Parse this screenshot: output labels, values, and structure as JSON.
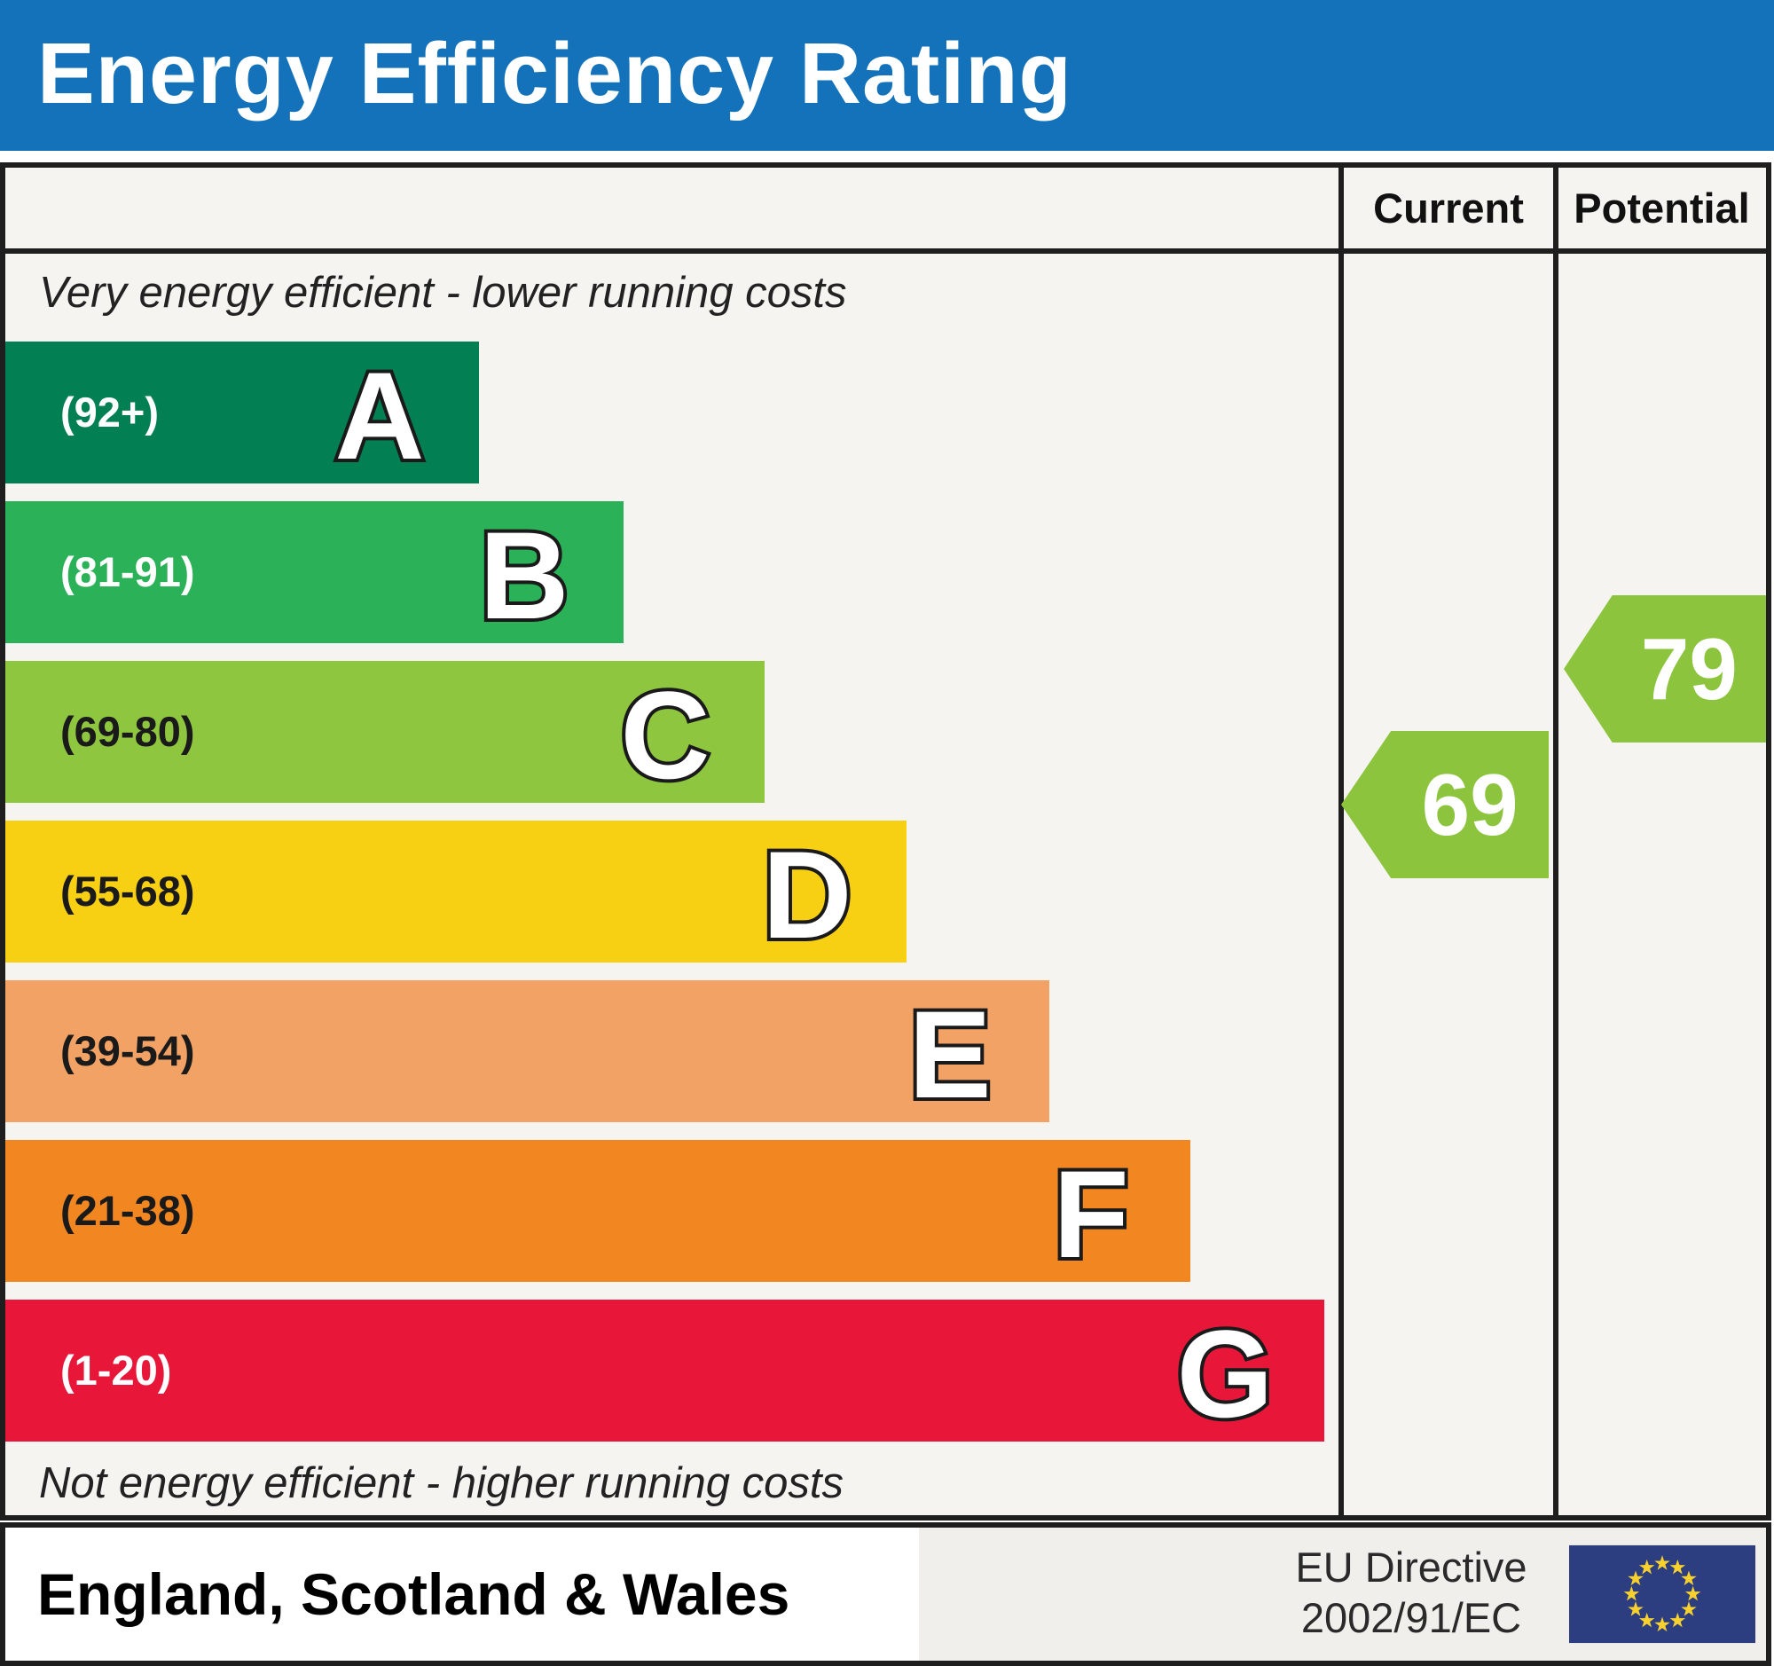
{
  "header": {
    "title": "Energy Efficiency Rating"
  },
  "table": {
    "current_label": "Current",
    "potential_label": "Potential",
    "top_caption": "Very energy efficient - lower running costs",
    "bottom_caption": "Not energy efficient - higher running costs"
  },
  "bands": [
    {
      "letter": "A",
      "range": "(92+)",
      "color": "#028054",
      "text_color": "#ffffff",
      "width_pct": 26.9
    },
    {
      "letter": "B",
      "range": "(81-91)",
      "color": "#2bb258",
      "text_color": "#ffffff",
      "width_pct": 35.1
    },
    {
      "letter": "C",
      "range": "(69-80)",
      "color": "#8ec63f",
      "text_color": "#1a1a1a",
      "width_pct": 43.1
    },
    {
      "letter": "D",
      "range": "(55-68)",
      "color": "#f7cf13",
      "text_color": "#1a1a1a",
      "width_pct": 51.2
    },
    {
      "letter": "E",
      "range": "(39-54)",
      "color": "#f1a264",
      "text_color": "#1a1a1a",
      "width_pct": 59.3
    },
    {
      "letter": "F",
      "range": "(21-38)",
      "color": "#f28620",
      "text_color": "#1a1a1a",
      "width_pct": 67.3
    },
    {
      "letter": "G",
      "range": "(1-20)",
      "color": "#e8173a",
      "text_color": "#ffffff",
      "width_pct": 74.9
    }
  ],
  "ratings": {
    "current": {
      "value": "69",
      "color": "#8cc43d"
    },
    "potential": {
      "value": "79",
      "color": "#8cc43d"
    }
  },
  "footer": {
    "region": "England, Scotland & Wales",
    "directive_line1": "EU Directive",
    "directive_line2": "2002/91/EC"
  },
  "colors": {
    "header_blue": "#1372b9",
    "frame_border": "#1e1e1e",
    "chart_background": "#f5f4f1",
    "eu_flag_blue": "#2d3e80",
    "eu_star_gold": "#f8d12e"
  },
  "chart_data": {
    "type": "bar",
    "title": "Energy Efficiency Rating",
    "categories": [
      "A",
      "B",
      "C",
      "D",
      "E",
      "F",
      "G"
    ],
    "band_ranges": [
      "92+",
      "81-91",
      "69-80",
      "55-68",
      "39-54",
      "21-38",
      "1-20"
    ],
    "band_colors": [
      "#028054",
      "#2bb258",
      "#8ec63f",
      "#f7cf13",
      "#f1a264",
      "#f28620",
      "#e8173a"
    ],
    "bar_width_pct": [
      26.9,
      35.1,
      43.1,
      51.2,
      59.3,
      67.3,
      74.9
    ],
    "series": [
      {
        "name": "Current",
        "value": 69,
        "band": "C"
      },
      {
        "name": "Potential",
        "value": 79,
        "band": "C"
      }
    ],
    "top_caption": "Very energy efficient - lower running costs",
    "bottom_caption": "Not energy efficient - higher running costs",
    "region": "England, Scotland & Wales",
    "directive": "EU Directive 2002/91/EC",
    "legend_position": "none",
    "grid": false
  }
}
